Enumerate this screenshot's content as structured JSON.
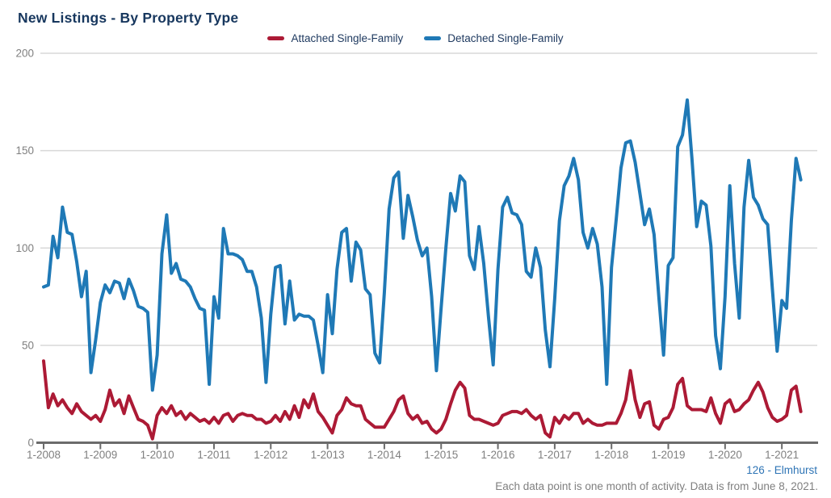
{
  "header": {
    "title": "New Listings - By Property Type"
  },
  "legend": {
    "items": [
      {
        "label": "Attached Single-Family",
        "color": "#AC1A35"
      },
      {
        "label": "Detached Single-Family",
        "color": "#1F79B6"
      }
    ]
  },
  "footer": {
    "source": "126 - Elmhurst",
    "note": "Each data point is one month of activity. Data is from June 8, 2021."
  },
  "colors": {
    "title": "#17375E",
    "axis_text": "#808080",
    "grid": "#D8D8D8",
    "axis_line": "#6B6B6B",
    "attached": "#AC1A35",
    "detached": "#1F79B6"
  },
  "chart_data": {
    "type": "line",
    "title": "New Listings - By Property Type",
    "xlabel": "",
    "ylabel": "",
    "ylim": [
      0,
      200
    ],
    "y_ticks": [
      0,
      50,
      100,
      150,
      200
    ],
    "grid": "horizontal",
    "legend_position": "top-center",
    "x_start_month": "1-2008",
    "x_end_month": "5-2021",
    "x_tick_labels": [
      "1-2008",
      "1-2009",
      "1-2010",
      "1-2011",
      "1-2012",
      "1-2013",
      "1-2014",
      "1-2015",
      "1-2016",
      "1-2017",
      "1-2018",
      "1-2019",
      "1-2020",
      "1-2021"
    ],
    "months_per_point": 1,
    "series": [
      {
        "name": "Attached Single-Family",
        "color": "#AC1A35",
        "values": [
          42,
          18,
          25,
          19,
          22,
          18,
          15,
          20,
          16,
          14,
          12,
          14,
          11,
          17,
          27,
          19,
          22,
          15,
          24,
          18,
          12,
          11,
          9,
          2,
          14,
          18,
          15,
          19,
          14,
          16,
          12,
          15,
          13,
          11,
          12,
          10,
          13,
          10,
          14,
          15,
          11,
          14,
          15,
          14,
          14,
          12,
          12,
          10,
          11,
          14,
          11,
          16,
          12,
          19,
          13,
          22,
          18,
          25,
          16,
          13,
          9,
          5,
          14,
          17,
          23,
          20,
          19,
          19,
          12,
          10,
          8,
          8,
          8,
          12,
          16,
          22,
          24,
          15,
          12,
          14,
          10,
          11,
          7,
          5,
          7,
          12,
          20,
          27,
          31,
          28,
          14,
          12,
          12,
          11,
          10,
          9,
          10,
          14,
          15,
          16,
          16,
          15,
          17,
          14,
          12,
          14,
          5,
          3,
          13,
          10,
          14,
          12,
          15,
          15,
          10,
          12,
          10,
          9,
          9,
          10,
          10,
          10,
          15,
          22,
          37,
          22,
          13,
          20,
          21,
          9,
          7,
          12,
          13,
          18,
          30,
          33,
          19,
          17,
          17,
          17,
          16,
          23,
          15,
          10,
          20,
          22,
          16,
          17,
          20,
          22,
          27,
          31,
          26,
          18,
          13,
          11,
          12,
          14,
          27,
          29,
          16
        ]
      },
      {
        "name": "Detached Single-Family",
        "color": "#1F79B6",
        "values": [
          80,
          81,
          106,
          95,
          121,
          108,
          107,
          93,
          75,
          88,
          36,
          53,
          72,
          81,
          77,
          83,
          82,
          74,
          84,
          78,
          70,
          69,
          67,
          27,
          45,
          97,
          117,
          87,
          92,
          84,
          83,
          80,
          74,
          69,
          68,
          30,
          75,
          64,
          110,
          97,
          97,
          96,
          94,
          88,
          88,
          80,
          64,
          31,
          66,
          90,
          91,
          61,
          83,
          63,
          66,
          65,
          65,
          63,
          50,
          36,
          76,
          56,
          89,
          108,
          110,
          83,
          103,
          99,
          79,
          76,
          46,
          41,
          77,
          120,
          136,
          139,
          105,
          127,
          116,
          104,
          96,
          100,
          75,
          37,
          69,
          100,
          128,
          119,
          137,
          134,
          96,
          89,
          111,
          92,
          65,
          40,
          89,
          121,
          126,
          118,
          117,
          112,
          88,
          85,
          100,
          90,
          58,
          39,
          74,
          114,
          132,
          137,
          146,
          135,
          108,
          100,
          110,
          102,
          80,
          30,
          90,
          115,
          141,
          154,
          155,
          144,
          128,
          112,
          120,
          107,
          75,
          45,
          91,
          95,
          152,
          158,
          176,
          146,
          111,
          124,
          122,
          101,
          55,
          38,
          75,
          132,
          92,
          64,
          121,
          145,
          126,
          122,
          115,
          112,
          79,
          47,
          73,
          69,
          114,
          146,
          135
        ]
      }
    ]
  }
}
